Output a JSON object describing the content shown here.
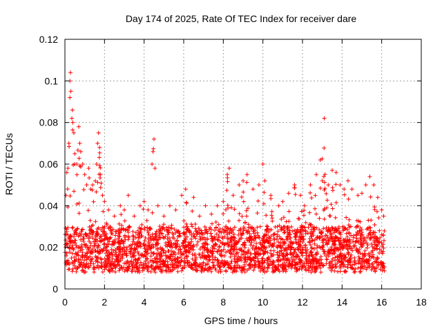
{
  "chart_data": {
    "type": "scatter",
    "title": "Day 174 of 2025, Rate Of TEC Index for receiver dare",
    "xlabel": "GPS time / hours",
    "ylabel": "ROTI / TECUs",
    "xlim": [
      0,
      18
    ],
    "ylim": [
      0,
      0.12
    ],
    "xticks": [
      0,
      2,
      4,
      6,
      8,
      10,
      12,
      14,
      16,
      18
    ],
    "xtick_labels": [
      "0",
      "2",
      "4",
      "6",
      "8",
      "10",
      "12",
      "14",
      "16",
      "18"
    ],
    "yticks": [
      0,
      0.02,
      0.04,
      0.06,
      0.08,
      0.1,
      0.12
    ],
    "ytick_labels": [
      "0",
      "0.02",
      "0.04",
      "0.06",
      "0.08",
      "0.1",
      "0.12"
    ],
    "grid": true,
    "marker": "+",
    "color": "#ff0000",
    "series": [
      {
        "values_note": "dense cloud of points 0-16.2 h; base 0.01-0.03, peaks listed",
        "points": [
          [
            0.05,
            0.045
          ],
          [
            0.1,
            0.056
          ],
          [
            0.15,
            0.058
          ],
          [
            0.2,
            0.07
          ],
          [
            0.25,
            0.092
          ],
          [
            0.25,
            0.1
          ],
          [
            0.28,
            0.104
          ],
          [
            0.3,
            0.095
          ],
          [
            0.35,
            0.082
          ],
          [
            0.38,
            0.086
          ],
          [
            0.4,
            0.08
          ],
          [
            0.45,
            0.075
          ],
          [
            0.5,
            0.065
          ],
          [
            0.6,
            0.06
          ],
          [
            0.7,
            0.078
          ],
          [
            0.75,
            0.07
          ],
          [
            0.8,
            0.066
          ],
          [
            0.9,
            0.06
          ],
          [
            1.0,
            0.055
          ],
          [
            1.1,
            0.05
          ],
          [
            1.2,
            0.058
          ],
          [
            1.3,
            0.048
          ],
          [
            1.4,
            0.05
          ],
          [
            1.6,
            0.06
          ],
          [
            1.65,
            0.07
          ],
          [
            1.7,
            0.075
          ],
          [
            1.75,
            0.068
          ],
          [
            1.8,
            0.055
          ],
          [
            1.9,
            0.045
          ],
          [
            2.0,
            0.042
          ],
          [
            2.2,
            0.038
          ],
          [
            2.5,
            0.035
          ],
          [
            2.8,
            0.04
          ],
          [
            3.0,
            0.038
          ],
          [
            3.2,
            0.045
          ],
          [
            3.5,
            0.035
          ],
          [
            3.8,
            0.04
          ],
          [
            4.0,
            0.042
          ],
          [
            4.2,
            0.038
          ],
          [
            4.4,
            0.06
          ],
          [
            4.45,
            0.066
          ],
          [
            4.5,
            0.072
          ],
          [
            4.55,
            0.058
          ],
          [
            4.7,
            0.04
          ],
          [
            5.0,
            0.035
          ],
          [
            5.3,
            0.04
          ],
          [
            5.6,
            0.038
          ],
          [
            5.9,
            0.045
          ],
          [
            6.1,
            0.048
          ],
          [
            6.5,
            0.044
          ],
          [
            6.8,
            0.035
          ],
          [
            7.1,
            0.04
          ],
          [
            7.4,
            0.036
          ],
          [
            7.7,
            0.04
          ],
          [
            8.0,
            0.042
          ],
          [
            8.2,
            0.055
          ],
          [
            8.3,
            0.058
          ],
          [
            8.5,
            0.045
          ],
          [
            8.8,
            0.05
          ],
          [
            9.0,
            0.052
          ],
          [
            9.2,
            0.055
          ],
          [
            9.5,
            0.048
          ],
          [
            9.8,
            0.05
          ],
          [
            10.0,
            0.06
          ],
          [
            10.1,
            0.052
          ],
          [
            10.4,
            0.045
          ],
          [
            10.8,
            0.04
          ],
          [
            11.0,
            0.042
          ],
          [
            11.3,
            0.046
          ],
          [
            11.6,
            0.05
          ],
          [
            11.9,
            0.045
          ],
          [
            12.1,
            0.04
          ],
          [
            12.4,
            0.05
          ],
          [
            12.7,
            0.055
          ],
          [
            12.9,
            0.062
          ],
          [
            13.0,
            0.052
          ],
          [
            13.1,
            0.082
          ],
          [
            13.3,
            0.05
          ],
          [
            13.5,
            0.057
          ],
          [
            13.7,
            0.056
          ],
          [
            13.9,
            0.05
          ],
          [
            14.1,
            0.048
          ],
          [
            14.3,
            0.052
          ],
          [
            14.5,
            0.048
          ],
          [
            14.8,
            0.045
          ],
          [
            15.0,
            0.046
          ],
          [
            15.2,
            0.05
          ],
          [
            15.4,
            0.054
          ],
          [
            15.6,
            0.05
          ],
          [
            15.8,
            0.044
          ],
          [
            16.0,
            0.038
          ],
          [
            16.1,
            0.035
          ]
        ]
      }
    ]
  }
}
